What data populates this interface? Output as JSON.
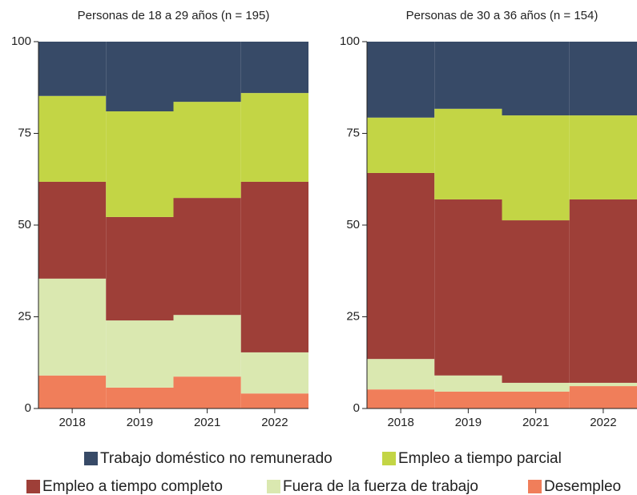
{
  "chart_data": [
    {
      "type": "stacked_bar",
      "title": "Personas de 18 a 29 años (n = 195)",
      "categories": [
        "2018",
        "2019",
        "2021",
        "2022"
      ],
      "ylim": [
        0,
        100
      ],
      "yticks": [
        0,
        25,
        50,
        75,
        100
      ],
      "series": [
        {
          "name": "Trabajo doméstico no remunerado",
          "color": "#374a67",
          "values": [
            14.8,
            19.0,
            16.4,
            14.0
          ]
        },
        {
          "name": "Empleo a tiempo parcial",
          "color": "#c3d545",
          "values": [
            23.4,
            28.8,
            26.2,
            24.2
          ]
        },
        {
          "name": "Empleo a tiempo completo",
          "color": "#9e3f38",
          "values": [
            26.4,
            28.2,
            31.9,
            46.5
          ]
        },
        {
          "name": "Fuera de la fuerza de trabajo",
          "color": "#dae8b0",
          "values": [
            26.4,
            18.3,
            16.8,
            11.2
          ]
        },
        {
          "name": "Desempleo",
          "color": "#f07e5a",
          "values": [
            9.0,
            5.7,
            8.7,
            4.1
          ]
        }
      ]
    },
    {
      "type": "stacked_bar",
      "title": "Personas de 30 a 36 años (n = 154)",
      "categories": [
        "2018",
        "2019",
        "2021",
        "2022"
      ],
      "ylim": [
        0,
        100
      ],
      "yticks": [
        0,
        25,
        50,
        75,
        100
      ],
      "series": [
        {
          "name": "Trabajo doméstico no remunerado",
          "color": "#374a67",
          "values": [
            20.7,
            18.3,
            20.1,
            20.1
          ]
        },
        {
          "name": "Empleo a tiempo parcial",
          "color": "#c3d545",
          "values": [
            15.1,
            24.7,
            28.6,
            22.9
          ]
        },
        {
          "name": "Empleo a tiempo completo",
          "color": "#9e3f38",
          "values": [
            50.7,
            48.0,
            44.3,
            50.0
          ]
        },
        {
          "name": "Fuera de la fuerza de trabajo",
          "color": "#dae8b0",
          "values": [
            8.3,
            4.4,
            2.4,
            0.9
          ]
        },
        {
          "name": "Desempleo",
          "color": "#f07e5a",
          "values": [
            5.2,
            4.6,
            4.6,
            6.1
          ]
        }
      ]
    }
  ]
}
